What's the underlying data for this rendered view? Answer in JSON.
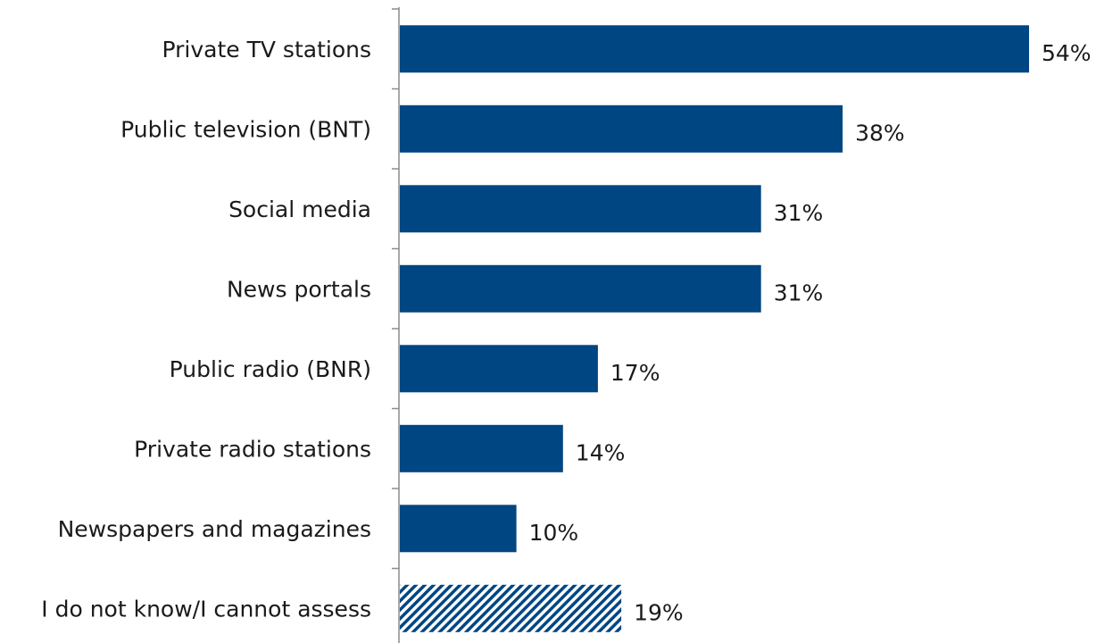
{
  "chart_data": {
    "type": "bar",
    "orientation": "horizontal",
    "categories": [
      "Private TV stations",
      "Public television (BNT)",
      "Social media",
      "News portals",
      "Public radio (BNR)",
      "Private radio stations",
      "Newspapers and magazines",
      "I do not know/I cannot assess"
    ],
    "values": [
      54,
      38,
      31,
      31,
      17,
      14,
      10,
      19
    ],
    "value_labels": [
      "54%",
      "38%",
      "31%",
      "31%",
      "17%",
      "14%",
      "10%",
      "19%"
    ],
    "bar_styles": [
      "solid",
      "solid",
      "solid",
      "solid",
      "solid",
      "solid",
      "solid",
      "hatched"
    ],
    "xlim": [
      0,
      54
    ],
    "grid": false,
    "legend": "none",
    "colors": {
      "bar": "#004682",
      "axis": "#8c8c8c"
    }
  }
}
